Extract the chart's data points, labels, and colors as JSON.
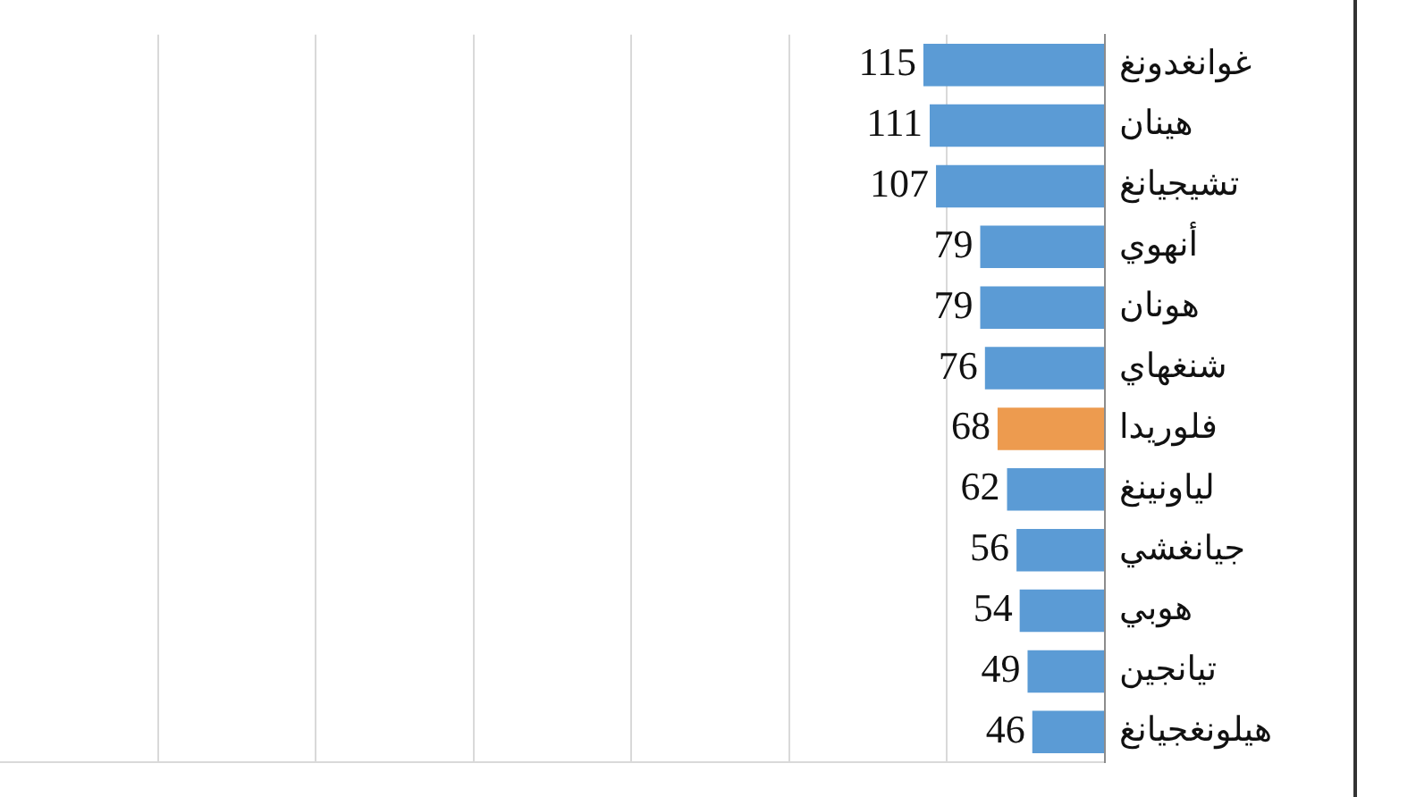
{
  "chart_data": {
    "type": "bar",
    "orientation": "horizontal",
    "categories": [
      "غوانغدونغ",
      "هينان",
      "تشيجيانغ",
      "أنهوي",
      "هونان",
      "شنغهاي",
      "فلوريدا",
      "لياونينغ",
      "جيانغشي",
      "هوبي",
      "تيانجين",
      "هيلونغجيانغ"
    ],
    "values": [
      115,
      111,
      107,
      79,
      79,
      76,
      68,
      62,
      56,
      54,
      49,
      46
    ],
    "colors": [
      "#5b9bd5",
      "#5b9bd5",
      "#5b9bd5",
      "#5b9bd5",
      "#5b9bd5",
      "#5b9bd5",
      "#ed9b4f",
      "#5b9bd5",
      "#5b9bd5",
      "#5b9bd5",
      "#5b9bd5",
      "#5b9bd5"
    ],
    "xlim": [
      700,
      0
    ],
    "xticks": [
      {
        "value": 0,
        "label": null
      },
      {
        "value": 100,
        "label": null
      },
      {
        "value": 200,
        "label": null
      },
      {
        "value": 300,
        "label": null
      },
      {
        "value": 400,
        "label": null
      },
      {
        "value": 500,
        "label": null
      },
      {
        "value": 600,
        "label": null
      }
    ],
    "grid": "x",
    "tick_labels": "y",
    "data_labels": true
  }
}
